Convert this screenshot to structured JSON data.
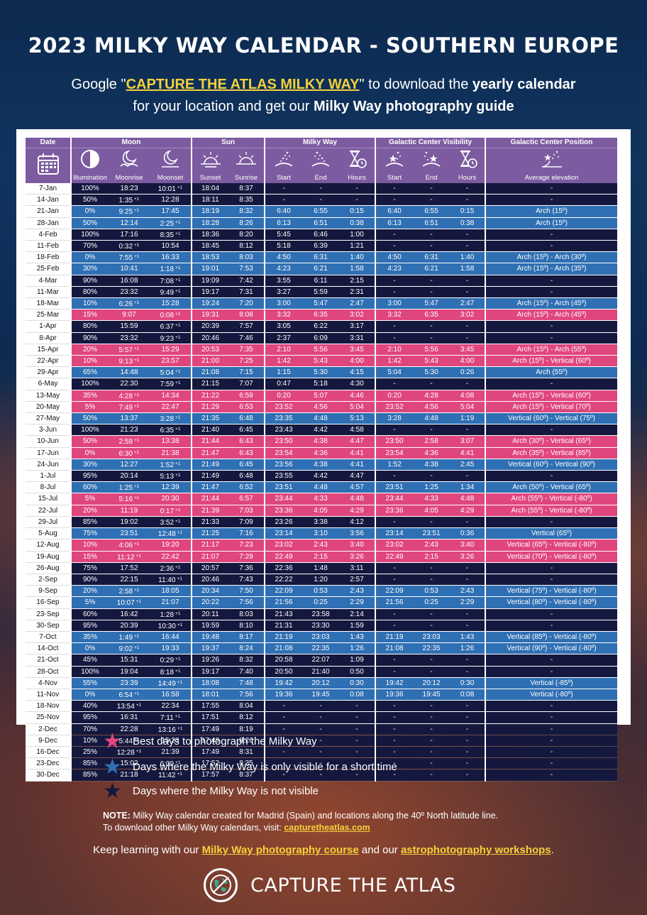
{
  "title": "2023 MILKY WAY CALENDAR - SOUTHERN EUROPE",
  "subtitle": {
    "pre": "Google \"",
    "link": "CAPTURE THE ATLAS MILKY WAY",
    "mid": "\" to download the ",
    "bold1": "yearly calendar",
    "line2_pre": "for your location and get our ",
    "bold2": "Milky Way photography guide"
  },
  "colors": {
    "best": "#e0467e",
    "short": "#2f6fb3",
    "none": "#14183e",
    "header": "#7c5ba0",
    "accent": "#f4d13a"
  },
  "table": {
    "groups": [
      "Date",
      "Moon",
      "Sun",
      "Milky Way",
      "Galactic Center Visibility",
      "Galactic Center Position"
    ],
    "columns": [
      "Illumination",
      "Moonrise",
      "Moonset",
      "Sunset",
      "Sunrise",
      "Start",
      "End",
      "Hours",
      "Start",
      "End",
      "Hours",
      "Average elevation"
    ],
    "rows": [
      [
        "7-Jan",
        "100%",
        "18:23",
        "10:01 +1",
        "18:04",
        "8:37",
        "-",
        "-",
        "-",
        "-",
        "-",
        "-",
        "-",
        "none"
      ],
      [
        "14-Jan",
        "50%",
        "1:35 +1",
        "12:28",
        "18:11",
        "8:35",
        "-",
        "-",
        "-",
        "-",
        "-",
        "-",
        "-",
        "none"
      ],
      [
        "21-Jan",
        "0%",
        "9:25 +1",
        "17:45",
        "18:19",
        "8:32",
        "6:40",
        "6:55",
        "0:15",
        "6:40",
        "6:55",
        "0:15",
        "Arch (15º)",
        "short"
      ],
      [
        "28-Jan",
        "50%",
        "12:14",
        "2:25 +1",
        "18:28",
        "8:26",
        "6:13",
        "6:51",
        "0:38",
        "6:13",
        "6:51",
        "0:38",
        "Arch (15º)",
        "short"
      ],
      [
        "4-Feb",
        "100%",
        "17:16",
        "8:35 +1",
        "18:36",
        "8:20",
        "5:45",
        "6:46",
        "1:00",
        "-",
        "-",
        "-",
        "-",
        "none"
      ],
      [
        "11-Feb",
        "70%",
        "0:32 +1",
        "10:54",
        "18:45",
        "8:12",
        "5:18",
        "6:39",
        "1:21",
        "-",
        "-",
        "-",
        "-",
        "none"
      ],
      [
        "18-Feb",
        "0%",
        "7:55 +1",
        "16:33",
        "18:53",
        "8:03",
        "4:50",
        "6:31",
        "1:40",
        "4:50",
        "6:31",
        "1:40",
        "Arch (15º) - Arch (30º)",
        "short"
      ],
      [
        "25-Feb",
        "30%",
        "10:41",
        "1:18 +1",
        "19:01",
        "7:53",
        "4:23",
        "6:21",
        "1:58",
        "4:23",
        "6:21",
        "1:58",
        "Arch (15º) - Arch (35º)",
        "short"
      ],
      [
        "4-Mar",
        "90%",
        "16:08",
        "7:08 +1",
        "19:09",
        "7:42",
        "3:55",
        "6:11",
        "2:15",
        "-",
        "-",
        "-",
        "-",
        "none"
      ],
      [
        "11-Mar",
        "80%",
        "23:32",
        "9:49 +1",
        "19:17",
        "7:31",
        "3:27",
        "5:59",
        "2:31",
        "-",
        "-",
        "-",
        "-",
        "none"
      ],
      [
        "18-Mar",
        "10%",
        "6:26 +1",
        "15:28",
        "19:24",
        "7:20",
        "3:00",
        "5:47",
        "2:47",
        "3:00",
        "5:47",
        "2:47",
        "Arch (15º) - Arch (45º)",
        "short"
      ],
      [
        "25-Mar",
        "15%",
        "9:07",
        "0:08 +1",
        "19:31",
        "8:08",
        "3:32",
        "6:35",
        "3:02",
        "3:32",
        "6:35",
        "3:02",
        "Arch (15º) - Arch (45º)",
        "best"
      ],
      [
        "1-Apr",
        "80%",
        "15:59",
        "6:37 +1",
        "20:39",
        "7:57",
        "3:05",
        "6:22",
        "3:17",
        "-",
        "-",
        "-",
        "-",
        "none"
      ],
      [
        "8-Apr",
        "90%",
        "23:32",
        "9:23 +1",
        "20:46",
        "7:46",
        "2:37",
        "6:09",
        "3:31",
        "-",
        "-",
        "-",
        "-",
        "none"
      ],
      [
        "15-Apr",
        "20%",
        "5:57 +1",
        "15:29",
        "20:53",
        "7:35",
        "2:10",
        "5:56",
        "3:45",
        "2:10",
        "5:56",
        "3:45",
        "Arch (15º) - Arch (55º)",
        "best"
      ],
      [
        "22-Apr",
        "10%",
        "9:13 +1",
        "23:57",
        "21:00",
        "7:25",
        "1:42",
        "5:43",
        "4:00",
        "1:42",
        "5:43",
        "4:00",
        "Arch (15º) - Vertical (60º)",
        "best"
      ],
      [
        "29-Apr",
        "65%",
        "14:48",
        "5:04 +1",
        "21:08",
        "7:15",
        "1:15",
        "5:30",
        "4:15",
        "5:04",
        "5:30",
        "0:26",
        "Arch (55º)",
        "short"
      ],
      [
        "6-May",
        "100%",
        "22:30",
        "7:59 +1",
        "21:15",
        "7:07",
        "0:47",
        "5:18",
        "4:30",
        "-",
        "-",
        "-",
        "-",
        "none"
      ],
      [
        "13-May",
        "35%",
        "4:28 +1",
        "14:34",
        "21:22",
        "6:59",
        "0:20",
        "5:07",
        "4:46",
        "0:20",
        "4:28",
        "4:08",
        "Arch (15º) - Vertical (60º)",
        "best"
      ],
      [
        "20-May",
        "5%",
        "7:49 +1",
        "22:47",
        "21:29",
        "6:53",
        "23:52",
        "4:56",
        "5:04",
        "23:52",
        "4:56",
        "5:04",
        "Arch (15º) - Vertical (70º)",
        "best"
      ],
      [
        "27-May",
        "50%",
        "13:37",
        "3:28 +1",
        "21:35",
        "6:48",
        "23:35",
        "4:48",
        "5:13",
        "3:28",
        "4:48",
        "1:19",
        "Vertical (60º) - Vertical (75º)",
        "short"
      ],
      [
        "3-Jun",
        "100%",
        "21:23",
        "6:35 +1",
        "21:40",
        "6:45",
        "23:43",
        "4:42",
        "4:58",
        "-",
        "-",
        "-",
        "-",
        "none"
      ],
      [
        "10-Jun",
        "50%",
        "2:58 +1",
        "13:38",
        "21:44",
        "6:43",
        "23:50",
        "4:38",
        "4:47",
        "23:50",
        "2:58",
        "3:07",
        "Arch (30º) - Vertical (65º)",
        "best"
      ],
      [
        "17-Jun",
        "0%",
        "6:30 +1",
        "21:38",
        "21:47",
        "6:43",
        "23:54",
        "4:36",
        "4:41",
        "23:54",
        "4:36",
        "4:41",
        "Arch (35º) - Vertical (85º)",
        "best"
      ],
      [
        "24-Jun",
        "30%",
        "12:27",
        "1:52 +1",
        "21:49",
        "6:45",
        "23:56",
        "4:38",
        "4:41",
        "1:52",
        "4:38",
        "2:45",
        "Vertical (60º) - Vertical (90º)",
        "short"
      ],
      [
        "1-Jul",
        "95%",
        "20:14",
        "5:13 +1",
        "21:49",
        "6:48",
        "23:55",
        "4:42",
        "4:47",
        "-",
        "-",
        "-",
        "-",
        "none"
      ],
      [
        "8-Jul",
        "60%",
        "1:25 +1",
        "12:39",
        "21:47",
        "6:52",
        "23:51",
        "4:48",
        "4:57",
        "23:51",
        "1:25",
        "1:34",
        "Arch (50º) - Vertical (65º)",
        "short"
      ],
      [
        "15-Jul",
        "5%",
        "5:16 +1",
        "20:30",
        "21:44",
        "6:57",
        "23:44",
        "4:33",
        "4:48",
        "23:44",
        "4:33",
        "4:48",
        "Arch (55º) - Vertical (-80º)",
        "best"
      ],
      [
        "22-Jul",
        "20%",
        "11:19",
        "0:17 +1",
        "21:39",
        "7:03",
        "23:36",
        "4:05",
        "4:29",
        "23:36",
        "4:05",
        "4:29",
        "Arch (55º) - Vertical (-80º)",
        "best"
      ],
      [
        "29-Jul",
        "85%",
        "19:02",
        "3:52 +1",
        "21:33",
        "7:09",
        "23:26",
        "3:38",
        "4:12",
        "-",
        "-",
        "-",
        "-",
        "none"
      ],
      [
        "5-Aug",
        "75%",
        "23:51",
        "12:48 +1",
        "21:25",
        "7:16",
        "23:14",
        "3:10",
        "3:56",
        "23:14",
        "23:51",
        "0:36",
        "Vertical (65º)",
        "short"
      ],
      [
        "12-Aug",
        "10%",
        "4:06 +1",
        "19:20",
        "21:17",
        "7:23",
        "23:02",
        "2:43",
        "3:40",
        "23:02",
        "2:43",
        "3:40",
        "Vertical (65º) - Vertical (-80º)",
        "best"
      ],
      [
        "19-Aug",
        "15%",
        "11:12 +1",
        "22:42",
        "21:07",
        "7:29",
        "22:49",
        "2:15",
        "3:26",
        "22:49",
        "2:15",
        "3:26",
        "Vertical (70º) - Vertical (-80º)",
        "best"
      ],
      [
        "26-Aug",
        "75%",
        "17:52",
        "2:36 +1",
        "20:57",
        "7:36",
        "22:36",
        "1:48",
        "3:11",
        "-",
        "-",
        "-",
        "-",
        "none"
      ],
      [
        "2-Sep",
        "90%",
        "22:15",
        "11:40 +1",
        "20:46",
        "7:43",
        "22:22",
        "1:20",
        "2:57",
        "-",
        "-",
        "-",
        "-",
        "none"
      ],
      [
        "9-Sep",
        "20%",
        "2:58 +1",
        "18:05",
        "20:34",
        "7:50",
        "22:09",
        "0:53",
        "2:43",
        "22:09",
        "0:53",
        "2:43",
        "Vertical (75º) - Vertical (-80º)",
        "short"
      ],
      [
        "16-Sep",
        "5%",
        "10:07 +1",
        "21:07",
        "20:22",
        "7:56",
        "21:56",
        "0:25",
        "2:29",
        "21:56",
        "0:25",
        "2:29",
        "Vertical (80º) - Vertical (-80º)",
        "short"
      ],
      [
        "23-Sep",
        "60%",
        "16:42",
        "1:28 +1",
        "20:11",
        "8:03",
        "21:43",
        "23:58",
        "2:14",
        "-",
        "-",
        "-",
        "-",
        "none"
      ],
      [
        "30-Sep",
        "95%",
        "20:39",
        "10:30 +1",
        "19:59",
        "8:10",
        "21:31",
        "23:30",
        "1:59",
        "-",
        "-",
        "-",
        "-",
        "none"
      ],
      [
        "7-Oct",
        "35%",
        "1:49 +1",
        "16:44",
        "19:48",
        "8:17",
        "21:19",
        "23:03",
        "1:43",
        "21:19",
        "23:03",
        "1:43",
        "Vertical (85º) - Vertical (-80º)",
        "short"
      ],
      [
        "14-Oct",
        "0%",
        "9:02 +1",
        "19:33",
        "19:37",
        "8:24",
        "21:08",
        "22:35",
        "1:26",
        "21:08",
        "22:35",
        "1:26",
        "Vertical (90º) - Vertical (-80º)",
        "short"
      ],
      [
        "21-Oct",
        "45%",
        "15:31",
        "0:29 +1",
        "19:26",
        "8:32",
        "20:58",
        "22:07",
        "1:09",
        "-",
        "-",
        "-",
        "-",
        "none"
      ],
      [
        "28-Oct",
        "100%",
        "19:04",
        "8:18 +1",
        "19:17",
        "7:40",
        "20:50",
        "21:40",
        "0:50",
        "-",
        "-",
        "-",
        "-",
        "none"
      ],
      [
        "4-Nov",
        "55%",
        "23:39",
        "14:49 +1",
        "18:08",
        "7:48",
        "19:42",
        "20:12",
        "0:30",
        "19:42",
        "20:12",
        "0:30",
        "Vertical (-85º)",
        "short"
      ],
      [
        "11-Nov",
        "0%",
        "6:54 +1",
        "16:58",
        "18:01",
        "7:56",
        "19:36",
        "19:45",
        "0:08",
        "19:36",
        "19:45",
        "0:08",
        "Vertical (-80º)",
        "short"
      ],
      [
        "18-Nov",
        "40%",
        "13:54 +1",
        "22:34",
        "17:55",
        "8:04",
        "-",
        "-",
        "-",
        "-",
        "-",
        "-",
        "-",
        "none"
      ],
      [
        "25-Nov",
        "95%",
        "16:31",
        "7:11 +1",
        "17:51",
        "8:12",
        "-",
        "-",
        "-",
        "-",
        "-",
        "-",
        "-",
        "none"
      ],
      [
        "2-Dec",
        "70%",
        "22:28",
        "13:16 +1",
        "17:49",
        "8:19",
        "-",
        "-",
        "-",
        "-",
        "-",
        "-",
        "-",
        "none"
      ],
      [
        "9-Dec",
        "10%",
        "5:44 +1",
        "15:23",
        "17:48",
        "8:26",
        "-",
        "-",
        "-",
        "-",
        "-",
        "-",
        "-",
        "none"
      ],
      [
        "16-Dec",
        "25%",
        "12:28 +1",
        "21:39",
        "17:49",
        "8:31",
        "-",
        "-",
        "-",
        "-",
        "-",
        "-",
        "-",
        "none"
      ],
      [
        "23-Dec",
        "85%",
        "15:02",
        "6:09 +1",
        "17:52",
        "8:35",
        "-",
        "-",
        "-",
        "-",
        "-",
        "-",
        "-",
        "none"
      ],
      [
        "30-Dec",
        "85%",
        "21:18",
        "11:42 +1",
        "17:57",
        "8:37",
        "-",
        "-",
        "-",
        "-",
        "-",
        "-",
        "-",
        "none"
      ]
    ]
  },
  "legend": [
    {
      "text": "Best days to photograph the Milky Way",
      "color": "#e0467e"
    },
    {
      "text": "Days where the Milky Way is only visible for a short time",
      "color": "#2f6fb3"
    },
    {
      "text": "Days where the Milky Way is not visible",
      "color": "#14183e"
    }
  ],
  "note": {
    "label": "NOTE:",
    "text": " Milky Way calendar created for Madrid (Spain) and locations along the 40º North latitude line.",
    "line2": "To download other Milky Way calendars, visit: ",
    "link": "capturetheatlas.com"
  },
  "keep": {
    "pre": "Keep learning with our ",
    "link1": "Milky Way photography course",
    "mid": " and our ",
    "link2": "astrophotography workshops",
    "post": "."
  },
  "brand": {
    "name": "CAPTURE THE ATLAS",
    "icon": "globe-icon"
  }
}
